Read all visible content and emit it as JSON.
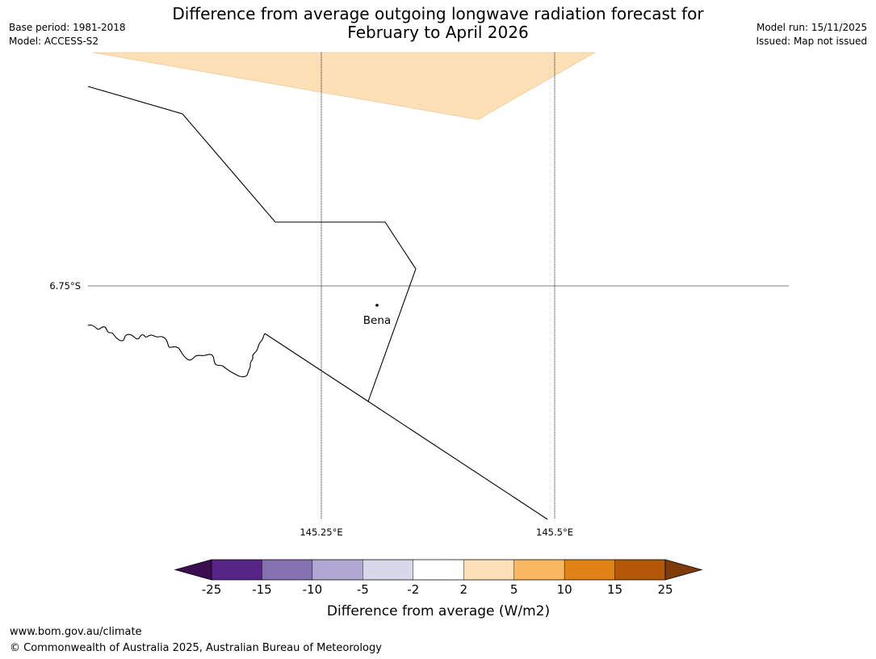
{
  "title": {
    "line1": "Difference from average outgoing longwave radiation forecast for",
    "line2": "February to April 2026"
  },
  "meta_left": {
    "base_period": "Base period: 1981-2018",
    "model": "Model: ACCESS-S2"
  },
  "meta_right": {
    "model_run": "Model run: 15/11/2025",
    "issued": "Issued: Map not issued"
  },
  "map": {
    "lat_label": "6.75°S",
    "lon_labels": [
      "145.25°E",
      "145.5°E"
    ],
    "place": "Bena"
  },
  "legend": {
    "title": "Difference from average (W/m2)",
    "ticks": [
      "-25",
      "-15",
      "-10",
      "-5",
      "-2",
      "2",
      "5",
      "10",
      "15",
      "25"
    ],
    "bins": [
      {
        "color": "#3b0f4f"
      },
      {
        "color": "#572488"
      },
      {
        "color": "#8371b0"
      },
      {
        "color": "#b0a8d2"
      },
      {
        "color": "#d9d8ea"
      },
      {
        "color": "#ffffff"
      },
      {
        "color": "#fde0b6"
      },
      {
        "color": "#fbb661"
      },
      {
        "color": "#e08214"
      },
      {
        "color": "#b35806"
      },
      {
        "color": "#7f3b08"
      }
    ]
  },
  "footer": {
    "url": "www.bom.gov.au/climate",
    "copyright": "© Commonwealth of Australia 2025, Australian Bureau of Meteorology"
  }
}
